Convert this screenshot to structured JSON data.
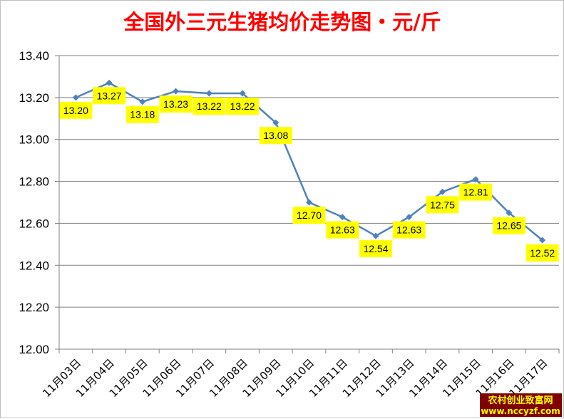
{
  "chart_data": {
    "type": "line",
    "title": "全国外三元生猪均价走势图・元/斤",
    "xlabel": "",
    "ylabel": "",
    "categories": [
      "11月03日",
      "11月04日",
      "11月05日",
      "11月06日",
      "11月07日",
      "11月08日",
      "11月09日",
      "11月10日",
      "11月11日",
      "11月12日",
      "11月13日",
      "11月14日",
      "11月15日",
      "11月16日",
      "11月17日"
    ],
    "series": [
      {
        "values": [
          13.2,
          13.27,
          13.18,
          13.23,
          13.22,
          13.22,
          13.08,
          12.7,
          12.63,
          12.54,
          12.63,
          12.75,
          12.81,
          12.65,
          12.52
        ]
      }
    ],
    "data_labels": [
      "13.20",
      "13.27",
      "13.18",
      "13.23",
      "13.22",
      "13.22",
      "13.08",
      "12.70",
      "12.63",
      "12.54",
      "12.63",
      "12.75",
      "12.81",
      "12.65",
      "12.52"
    ],
    "ylim": [
      12.0,
      13.4
    ],
    "yticks": [
      12.0,
      12.2,
      12.4,
      12.6,
      12.8,
      13.0,
      13.2,
      13.4
    ],
    "ytick_labels": [
      "12.00",
      "12.20",
      "12.40",
      "12.60",
      "12.80",
      "13.00",
      "13.20",
      "13.40"
    ],
    "grid": true,
    "legend": "none",
    "colors": {
      "title": "#ff0000",
      "line": "#4f81bd",
      "label_bg": "#ffff00",
      "grid": "#808080"
    }
  },
  "watermark": {
    "line1": "农村创业致富网",
    "line2": "www.nccyzf.com",
    "bg": "#800000",
    "fg": "#ffff00"
  }
}
